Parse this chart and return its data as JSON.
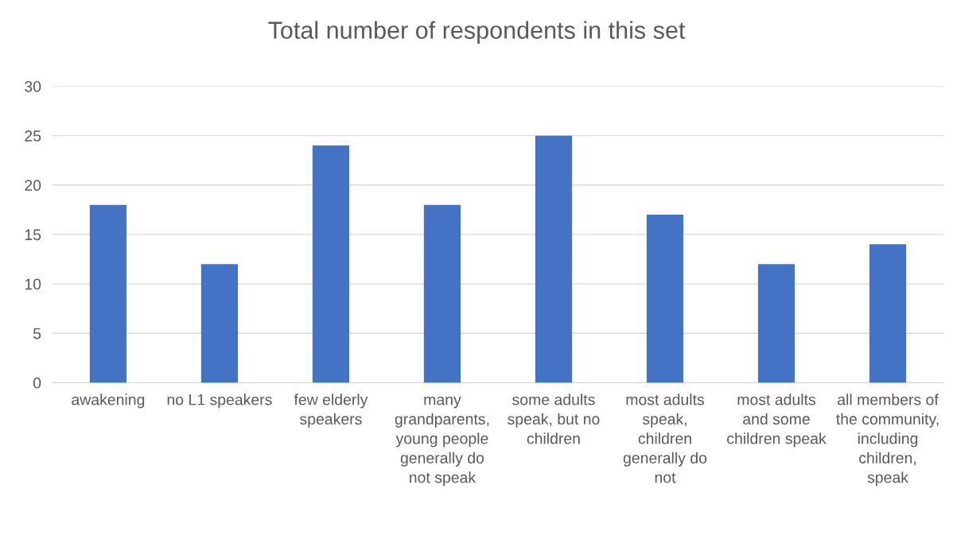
{
  "chart_data": {
    "type": "bar",
    "title": "Total number of respondents in this set",
    "categories": [
      "awakening",
      "no L1 speakers",
      "few elderly speakers",
      "many grandparents, young people generally do not speak",
      "some adults speak, but no children",
      "most adults speak, children generally do not",
      "most adults and some children speak",
      "all members of the community, including children, speak"
    ],
    "values": [
      18,
      12,
      24,
      18,
      25,
      17,
      12,
      14
    ],
    "color": "#4472c4",
    "ylim": [
      0,
      30
    ],
    "yticks": [
      0,
      5,
      10,
      15,
      20,
      25,
      30
    ],
    "grid": "y",
    "legend": false
  }
}
